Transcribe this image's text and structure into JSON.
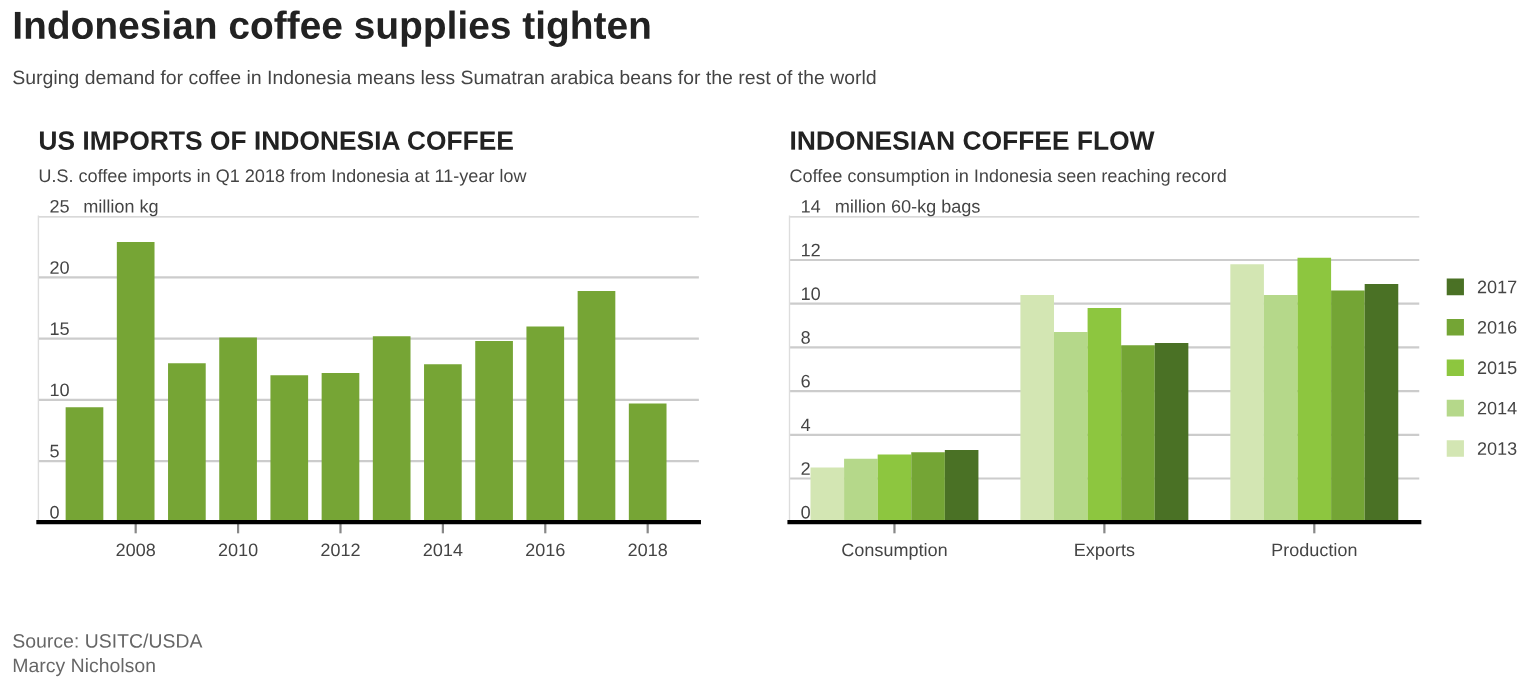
{
  "chart_data": [
    {
      "type": "other",
      "title": "Indonesian coffee supplies tighten",
      "subtitle": "Surging demand for coffee in Indonesia means less Sumatran arabica beans for the rest of the world",
      "annotations": [
        "Source: USITC/USDA",
        "Marcy Nicholson"
      ]
    },
    {
      "type": "bar",
      "title": "US IMPORTS OF INDONESIA COFFEE",
      "subtitle": "U.S. coffee imports in Q1 2018 from Indonesia at 11-year low",
      "x": [
        2007,
        2008,
        2009,
        2010,
        2011,
        2012,
        2013,
        2014,
        2015,
        2016,
        2017,
        2018
      ],
      "series": [
        {
          "color": "#76a535",
          "values": [
            9.4,
            22.9,
            13.0,
            15.1,
            12.0,
            12.2,
            15.2,
            12.9,
            14.8,
            16.0,
            18.9,
            9.7
          ]
        }
      ],
      "xlim": [
        2006.1,
        2019
      ],
      "xticks": [
        2008,
        2010,
        2012,
        2014,
        2016,
        2018
      ],
      "ylim": [
        0,
        25
      ],
      "yticks": [
        0,
        5,
        10,
        15,
        20,
        25
      ],
      "ylabel": "million kg",
      "grid": "y",
      "legend": false
    },
    {
      "type": "bar",
      "title": "INDONESIAN COFFEE FLOW",
      "subtitle": "Coffee consumption in Indonesia seen reaching record",
      "categories": [
        "Consumption",
        "Exports",
        "Production"
      ],
      "series": [
        {
          "name": "2013",
          "color": "#d3e6b3",
          "values": [
            2.5,
            10.4,
            11.8
          ]
        },
        {
          "name": "2014",
          "color": "#b5d88a",
          "values": [
            2.9,
            8.7,
            10.4
          ]
        },
        {
          "name": "2015",
          "color": "#8dc63f",
          "values": [
            3.1,
            9.8,
            12.1
          ]
        },
        {
          "name": "2016",
          "color": "#74a535",
          "values": [
            3.2,
            8.1,
            10.6
          ]
        },
        {
          "name": "2017",
          "color": "#4a7125",
          "values": [
            3.3,
            8.2,
            10.9
          ]
        }
      ],
      "ylim": [
        0,
        14
      ],
      "yticks": [
        0,
        2,
        4,
        6,
        8,
        10,
        12,
        14
      ],
      "ylabel": "million 60-kg bags",
      "grid": "y",
      "legend": "right"
    }
  ]
}
